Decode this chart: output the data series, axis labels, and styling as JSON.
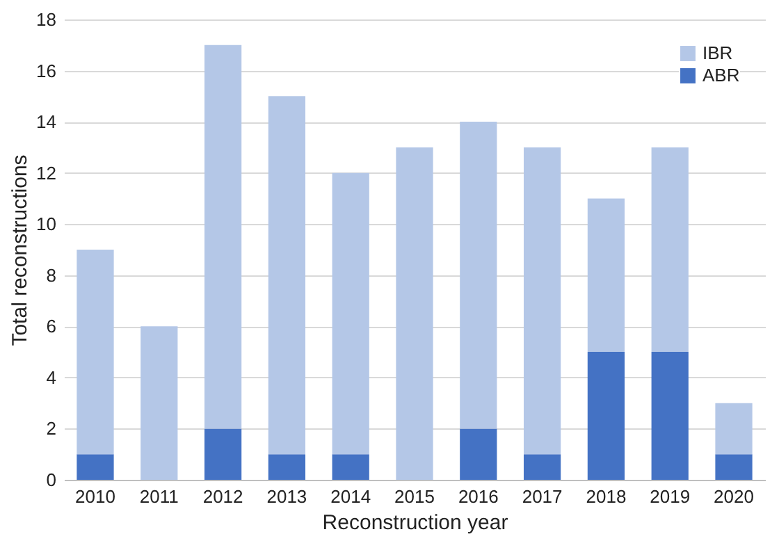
{
  "chart_data": {
    "type": "bar",
    "stacked": true,
    "xlabel": "Reconstruction year",
    "ylabel": "Total reconstructions",
    "categories": [
      "2010",
      "2011",
      "2012",
      "2013",
      "2014",
      "2015",
      "2016",
      "2017",
      "2018",
      "2019",
      "2020"
    ],
    "series": [
      {
        "name": "ABR",
        "color": "#4472c4",
        "values": [
          1,
          0,
          2,
          1,
          1,
          0,
          2,
          1,
          5,
          5,
          1
        ]
      },
      {
        "name": "IBR",
        "color": "#b4c7e7",
        "values": [
          8,
          6,
          15,
          14,
          11,
          13,
          12,
          12,
          6,
          8,
          2
        ]
      }
    ],
    "ylim": [
      0,
      18
    ],
    "yticks": [
      0,
      2,
      4,
      6,
      8,
      10,
      12,
      14,
      16,
      18
    ],
    "grid": "y",
    "legend": "top right"
  }
}
